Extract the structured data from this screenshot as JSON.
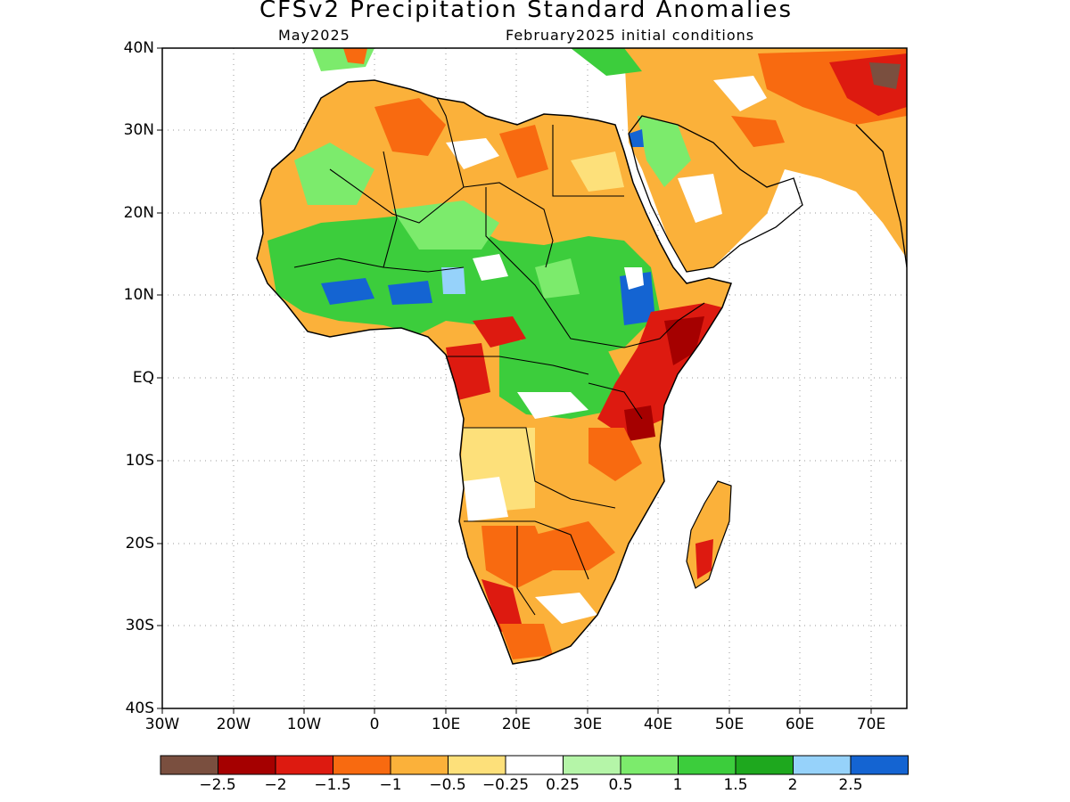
{
  "header": {
    "title": "CFSv2 Precipitation Standard Anomalies",
    "subtitle_left": "May2025",
    "subtitle_right": "February2025 initial conditions"
  },
  "map": {
    "region": "Africa",
    "lon_range": [
      -30,
      75
    ],
    "lat_range": [
      -40,
      40
    ],
    "grid": "dotted",
    "lat_labels": [
      "40N",
      "30N",
      "20N",
      "10N",
      "EQ",
      "10S",
      "20S",
      "30S",
      "40S"
    ],
    "lon_labels": [
      "30W",
      "20W",
      "10W",
      "0",
      "10E",
      "20E",
      "30E",
      "40E",
      "50E",
      "60E",
      "70E"
    ]
  },
  "legend": {
    "colors": [
      "#7a4f3f",
      "#a50000",
      "#dd1a10",
      "#f86a10",
      "#fbb13a",
      "#fde07a",
      "#ffffff",
      "#b5f5a8",
      "#7ceb6c",
      "#3ccd3c",
      "#1ea81e",
      "#96d2fa",
      "#1464d2"
    ],
    "labels": [
      "−2.5",
      "−2",
      "−1.5",
      "−1",
      "−0.5",
      "−0.25",
      "0.25",
      "0.5",
      "1",
      "1.5",
      "2",
      "2.5"
    ]
  }
}
